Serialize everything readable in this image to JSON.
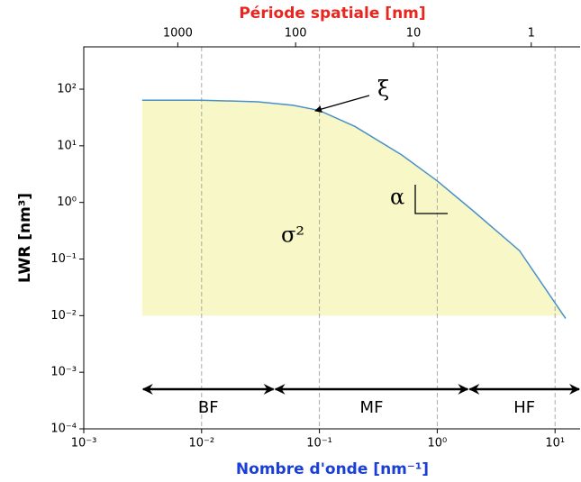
{
  "chart_data": {
    "type": "line",
    "xlabel": "Nombre d'onde [nm⁻¹]",
    "ylabel": "LWR [nm³]",
    "top_xlabel": "Période spatiale [nm]",
    "log_x": true,
    "log_y": true,
    "x": [
      0.00313,
      0.01,
      0.03,
      0.06,
      0.1,
      0.2,
      0.5,
      1,
      2,
      5,
      12.3
    ],
    "series": [
      {
        "color": "#4a90c8",
        "values": [
          64,
          64,
          60,
          52,
          42,
          22,
          6.9,
          2.4,
          0.72,
          0.14,
          0.0089
        ]
      }
    ],
    "fill_color": "#f7f7c8",
    "fill_base": 0.01,
    "xlim": [
      0.001,
      16.6
    ],
    "ylim": [
      0.0001,
      560
    ],
    "xticks": [
      {
        "value": 0.001,
        "label": "10⁻³"
      },
      {
        "value": 0.01,
        "label": "10⁻²"
      },
      {
        "value": 0.1,
        "label": "10⁻¹"
      },
      {
        "value": 1,
        "label": "10⁰"
      },
      {
        "value": 10,
        "label": "10¹"
      }
    ],
    "yticks": [
      {
        "value": 0.0001,
        "label": "10⁻⁴"
      },
      {
        "value": 0.001,
        "label": "10⁻³"
      },
      {
        "value": 0.01,
        "label": "10⁻²"
      },
      {
        "value": 0.1,
        "label": "10⁻¹"
      },
      {
        "value": 1,
        "label": "10⁰"
      },
      {
        "value": 10,
        "label": "10¹"
      },
      {
        "value": 100,
        "label": "10²"
      }
    ],
    "top_xticks": [
      {
        "value": 0.00628,
        "label": "1000"
      },
      {
        "value": 0.0628,
        "label": "100"
      },
      {
        "value": 0.628,
        "label": "10"
      },
      {
        "value": 6.28,
        "label": "1"
      }
    ],
    "grid_x": true,
    "annotations": {
      "xi": "ξ",
      "alpha": "α",
      "sigma": "σ²"
    },
    "bands": [
      {
        "name": "BF",
        "from": 0.00313,
        "to": 0.0415
      },
      {
        "name": "MF",
        "from": 0.0415,
        "to": 1.85
      },
      {
        "name": "HF",
        "from": 1.85,
        "to": 16.6
      }
    ]
  }
}
